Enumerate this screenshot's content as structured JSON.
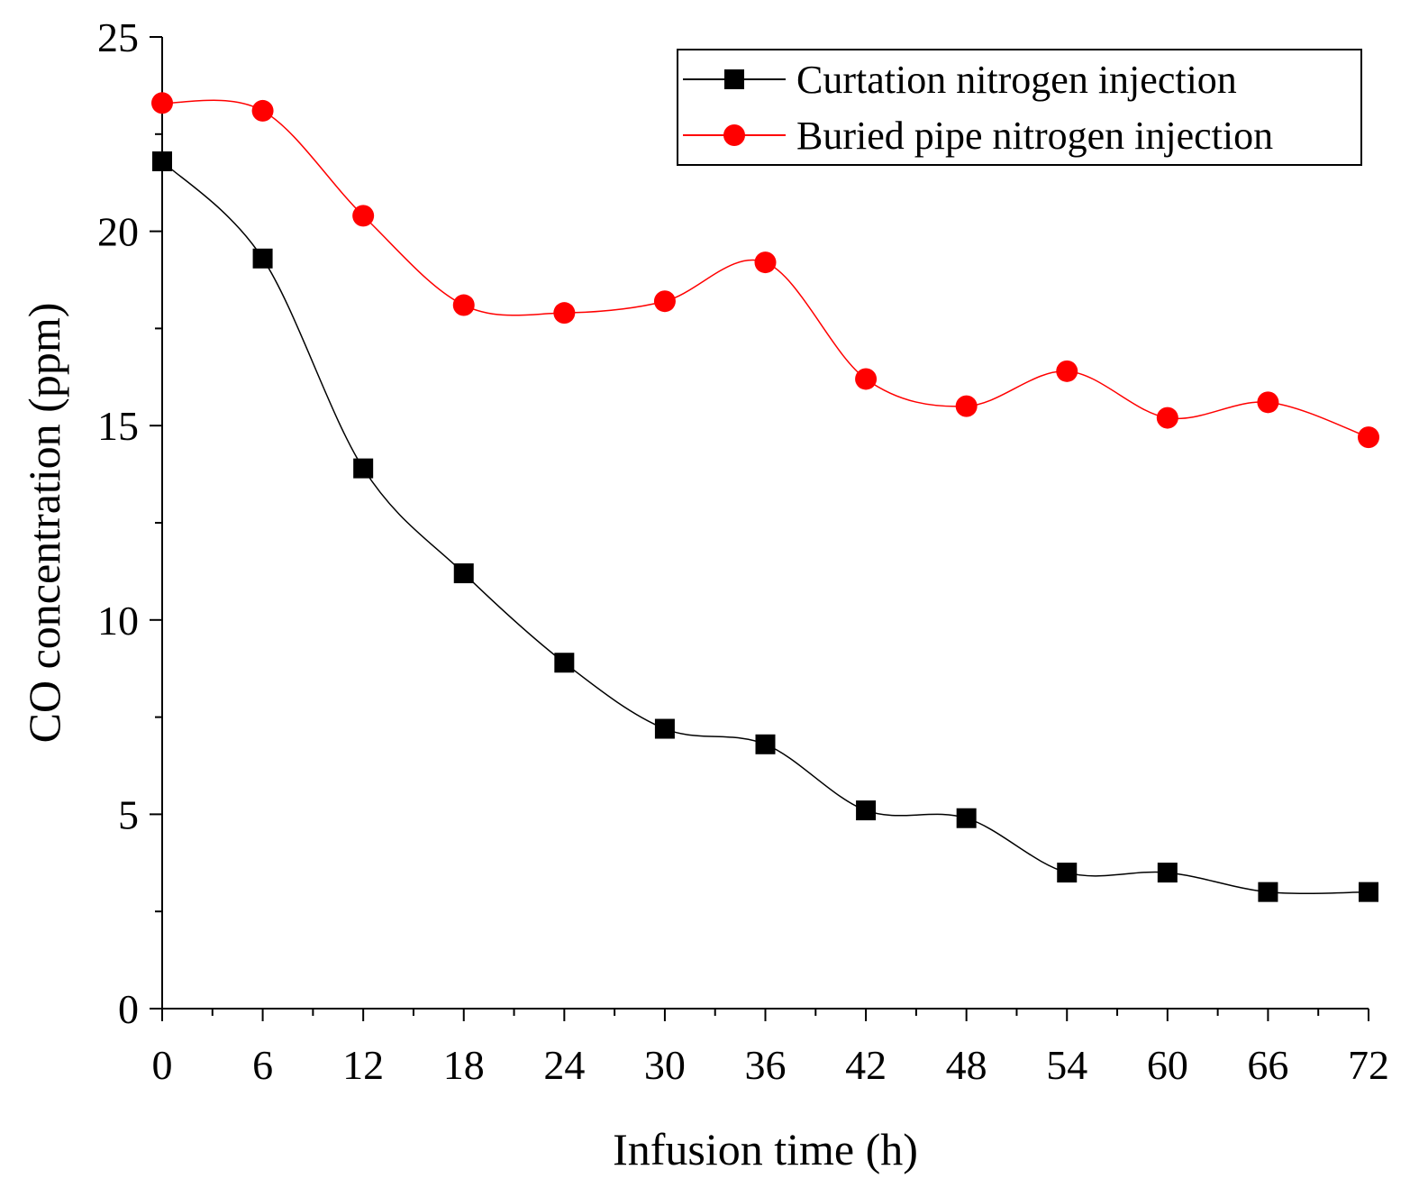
{
  "chart_data": {
    "type": "line",
    "title": "",
    "xlabel": "Infusion time (h)",
    "ylabel": "CO concentration (ppm)",
    "xlim": [
      0,
      72
    ],
    "ylim": [
      0,
      25
    ],
    "x_ticks": [
      0,
      6,
      12,
      18,
      24,
      30,
      36,
      42,
      48,
      54,
      60,
      66,
      72
    ],
    "x_tick_labels": [
      "0",
      "6",
      "12",
      "18",
      "24",
      "30",
      "36",
      "42",
      "48",
      "54",
      "60",
      "66",
      "72"
    ],
    "y_ticks": [
      0,
      5,
      10,
      15,
      20,
      25
    ],
    "y_tick_labels": [
      "0",
      "5",
      "10",
      "15",
      "20",
      "25"
    ],
    "grid": false,
    "legend_position": "top-right",
    "x": [
      0,
      6,
      12,
      18,
      24,
      30,
      36,
      42,
      48,
      54,
      60,
      66,
      72
    ],
    "series": [
      {
        "name": "Curtation nitrogen injection",
        "color": "#000000",
        "marker": "square",
        "values": [
          21.8,
          19.3,
          13.9,
          11.2,
          8.9,
          7.2,
          6.8,
          5.1,
          4.9,
          3.5,
          3.5,
          3.0,
          3.0
        ]
      },
      {
        "name": "Buried pipe nitrogen injection",
        "color": "#ff0000",
        "marker": "circle",
        "values": [
          23.3,
          23.1,
          20.4,
          18.1,
          17.9,
          18.2,
          19.2,
          16.2,
          15.5,
          16.4,
          15.2,
          15.6,
          14.7
        ]
      }
    ]
  }
}
